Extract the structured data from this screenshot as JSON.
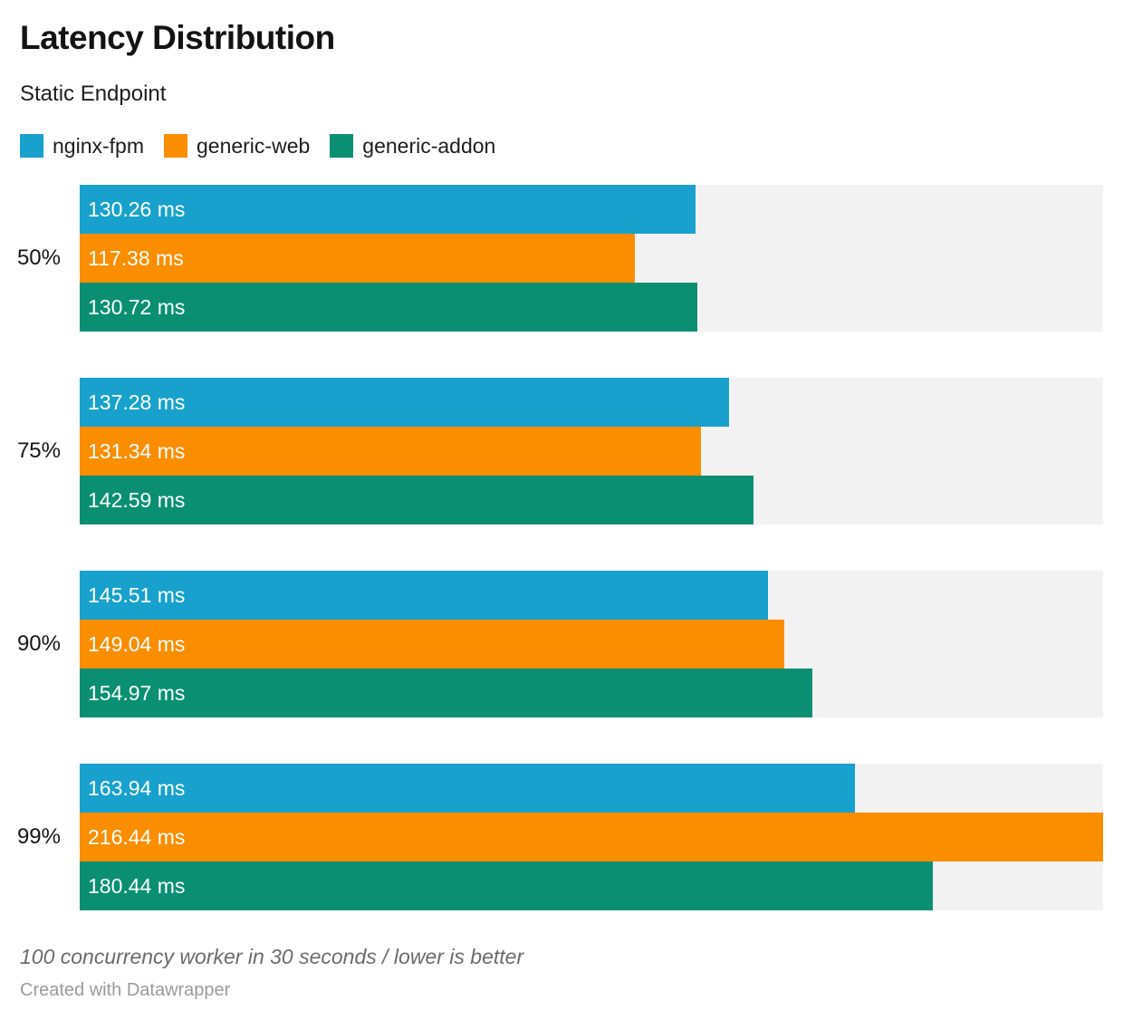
{
  "header": {
    "title": "Latency Distribution",
    "subtitle": "Static Endpoint"
  },
  "chart_data": {
    "type": "bar",
    "orientation": "horizontal",
    "grouping": "grouped",
    "title": "Latency Distribution",
    "subtitle": "Static Endpoint",
    "categories": [
      "50%",
      "75%",
      "90%",
      "99%"
    ],
    "series": [
      {
        "name": "nginx-fpm",
        "color": "#18A1CD",
        "values": [
          130.26,
          137.28,
          145.51,
          163.94
        ]
      },
      {
        "name": "generic-web",
        "color": "#FA8D00",
        "values": [
          117.38,
          131.34,
          149.04,
          216.44
        ]
      },
      {
        "name": "generic-addon",
        "color": "#0B8F72",
        "values": [
          130.72,
          142.59,
          154.97,
          180.44
        ]
      }
    ],
    "value_suffix": " ms",
    "value_decimals": 2,
    "xlabel": "",
    "ylabel": "",
    "xlim": [
      0,
      216.44
    ],
    "track_color": "#F2F2F2",
    "grid": false,
    "legend_position": "top",
    "labels_inside_bars": true
  },
  "footer": {
    "notes": "100 concurrency worker in 30 seconds / lower is better",
    "byline": "Created with Datawrapper"
  }
}
